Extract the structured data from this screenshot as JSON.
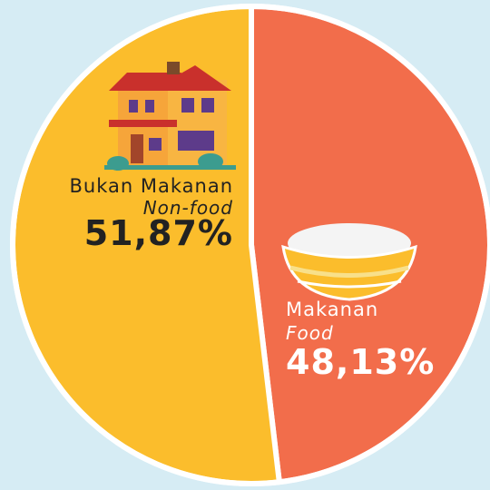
{
  "chart_data": {
    "type": "pie",
    "categories": [
      "Makanan",
      "Bukan Makanan"
    ],
    "categories_en": [
      "Food",
      "Non-food"
    ],
    "values": [
      48.13,
      51.87
    ],
    "value_labels": [
      "48,13%",
      "51,87%"
    ],
    "colors": [
      "#f26d4b",
      "#fbbd2c"
    ]
  }
}
